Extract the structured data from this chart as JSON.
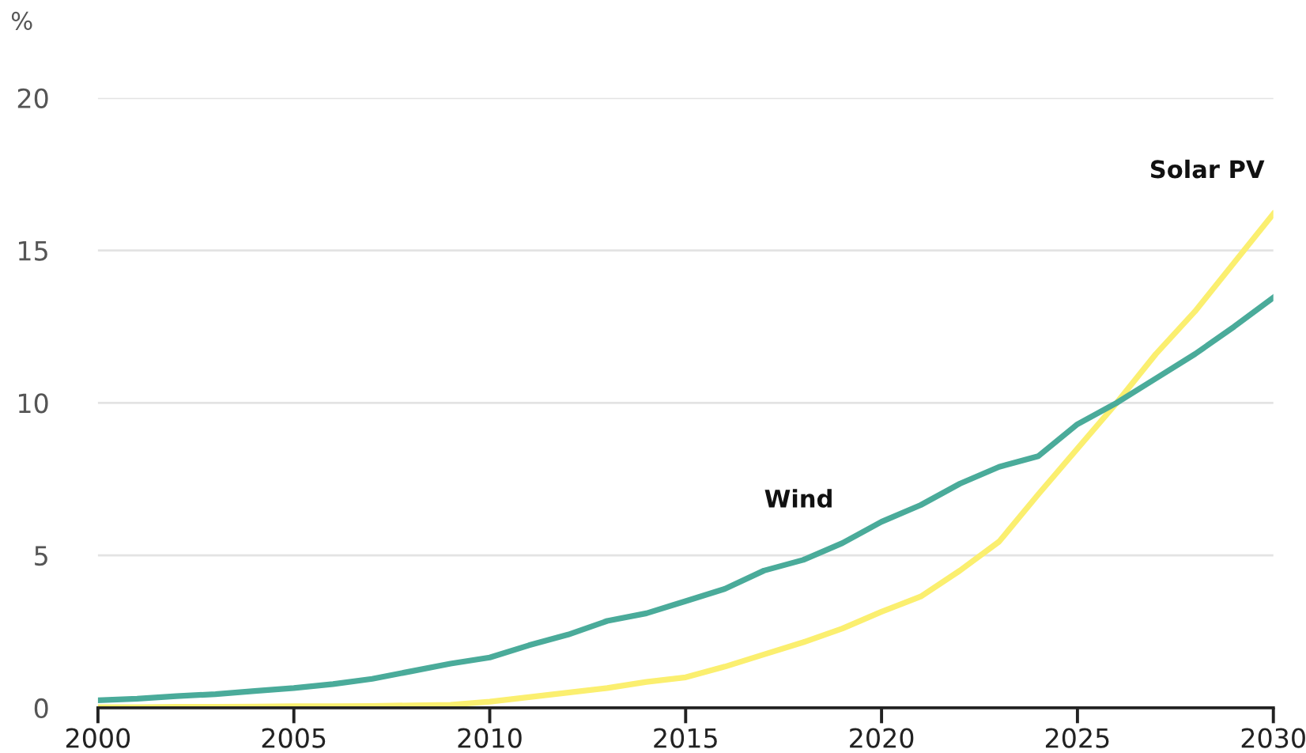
{
  "chart_data": {
    "type": "line",
    "ylabel": "%",
    "x": [
      2000,
      2001,
      2002,
      2003,
      2004,
      2005,
      2006,
      2007,
      2008,
      2009,
      2010,
      2011,
      2012,
      2013,
      2014,
      2015,
      2016,
      2017,
      2018,
      2019,
      2020,
      2021,
      2022,
      2023,
      2024,
      2025,
      2026,
      2027,
      2028,
      2029,
      2030
    ],
    "series": [
      {
        "name": "Wind",
        "color": "#4aab9a",
        "values": [
          0.25,
          0.3,
          0.38,
          0.45,
          0.55,
          0.65,
          0.78,
          0.95,
          1.2,
          1.45,
          1.65,
          2.05,
          2.4,
          2.85,
          3.1,
          3.5,
          3.9,
          4.5,
          4.85,
          5.4,
          6.1,
          6.65,
          7.35,
          7.9,
          8.25,
          9.3,
          10.0,
          10.8,
          11.6,
          12.5,
          13.45
        ]
      },
      {
        "name": "Solar PV",
        "color": "#fbef6f",
        "values": [
          0.02,
          0.02,
          0.03,
          0.03,
          0.04,
          0.05,
          0.05,
          0.06,
          0.08,
          0.1,
          0.2,
          0.35,
          0.5,
          0.65,
          0.85,
          1.0,
          1.35,
          1.75,
          2.15,
          2.6,
          3.15,
          3.65,
          4.5,
          5.45,
          7.0,
          8.5,
          10.0,
          11.6,
          13.0,
          14.6,
          16.2
        ]
      }
    ],
    "xlim": [
      2000,
      2030
    ],
    "xticks": [
      2000,
      2005,
      2010,
      2015,
      2020,
      2025,
      2030
    ],
    "ylim": [
      0,
      20
    ],
    "yticks": [
      0,
      5,
      10,
      15,
      20
    ],
    "grid": "y",
    "legend": false,
    "marker": "none",
    "line_style": "solid"
  }
}
